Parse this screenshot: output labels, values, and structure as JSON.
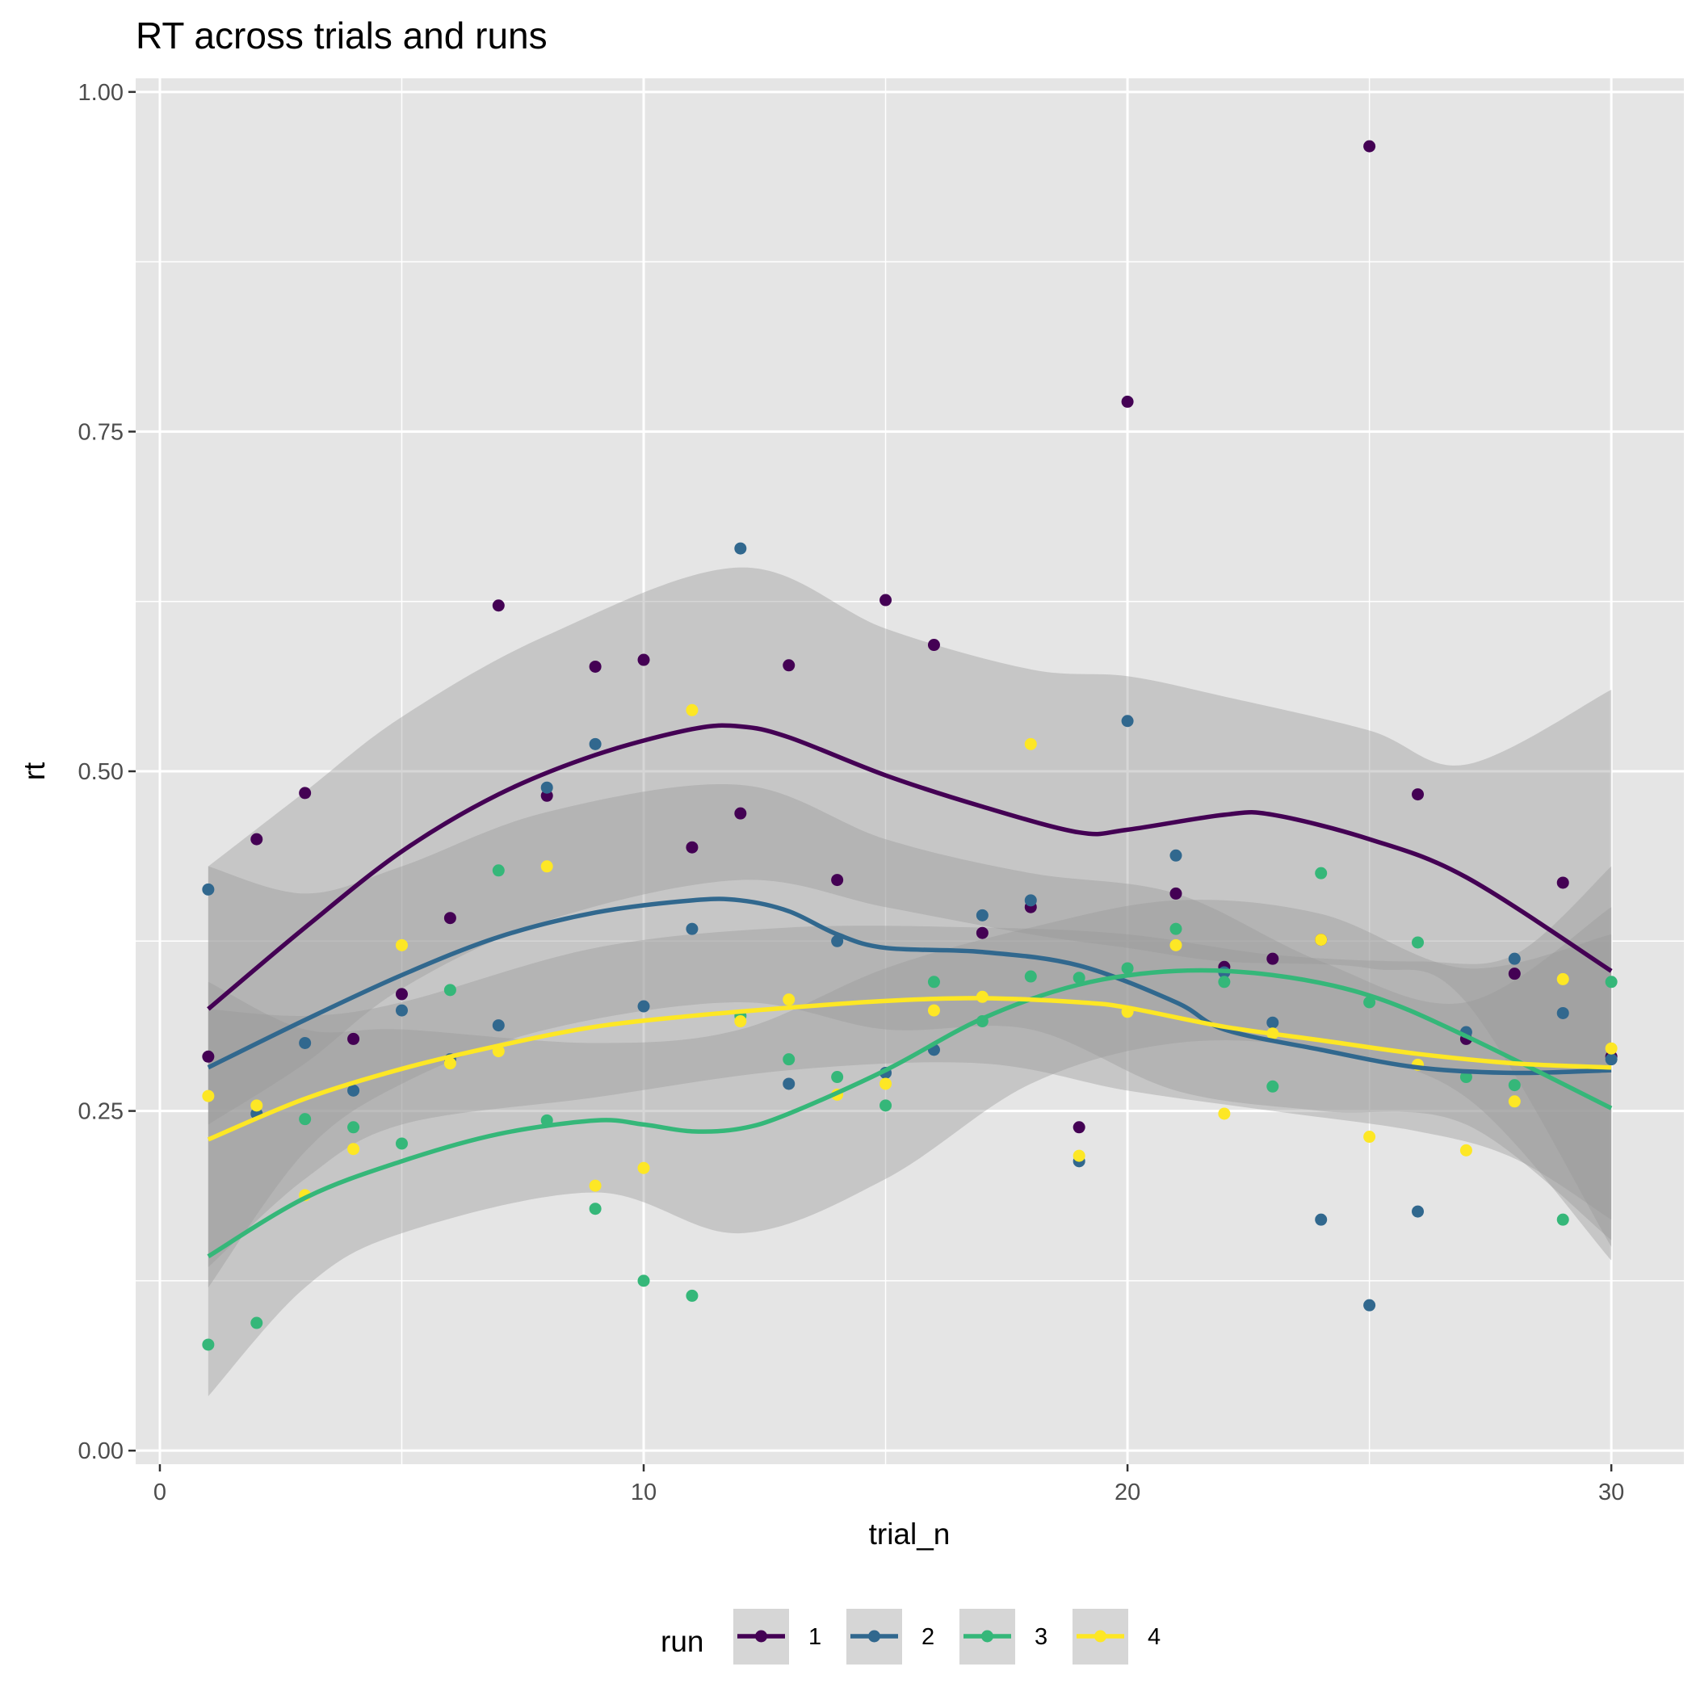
{
  "chart_data": {
    "type": "scatter",
    "title": "RT across trials and runs",
    "xlabel": "trial_n",
    "ylabel": "rt",
    "xlim": [
      -0.5,
      31.5
    ],
    "ylim": [
      -0.01,
      1.01
    ],
    "x_ticks": [
      0,
      10,
      20,
      30
    ],
    "x_tick_labels": [
      "0",
      "10",
      "20",
      "30"
    ],
    "y_ticks": [
      0.0,
      0.25,
      0.5,
      0.75,
      1.0
    ],
    "y_tick_labels": [
      "0.00",
      "0.25",
      "0.50",
      "0.75",
      "1.00"
    ],
    "grid": true,
    "legend": {
      "title": "run",
      "placement": "bottom"
    },
    "series": [
      {
        "name": "1",
        "color": "#440154",
        "points": [
          [
            1,
            0.29
          ],
          [
            2,
            0.45
          ],
          [
            3,
            0.484
          ],
          [
            4,
            0.303
          ],
          [
            5,
            0.336
          ],
          [
            6,
            0.392
          ],
          [
            7,
            0.622
          ],
          [
            8,
            0.482
          ],
          [
            9,
            0.577
          ],
          [
            10,
            0.582
          ],
          [
            11,
            0.444
          ],
          [
            12,
            0.469
          ],
          [
            13,
            0.578
          ],
          [
            14,
            0.42
          ],
          [
            15,
            0.626
          ],
          [
            16,
            0.593
          ],
          [
            17,
            0.381
          ],
          [
            18,
            0.4
          ],
          [
            19,
            0.238
          ],
          [
            20,
            0.772
          ],
          [
            21,
            0.41
          ],
          [
            22,
            0.356
          ],
          [
            23,
            0.362
          ],
          [
            24,
            0.376
          ],
          [
            25,
            0.96
          ],
          [
            26,
            0.483
          ],
          [
            27,
            0.303
          ],
          [
            28,
            0.351
          ],
          [
            29,
            0.418
          ],
          [
            30,
            0.29
          ]
        ],
        "smooth": [
          [
            1,
            0.325
          ],
          [
            3,
            0.385
          ],
          [
            5,
            0.441
          ],
          [
            7,
            0.483
          ],
          [
            9,
            0.512
          ],
          [
            11,
            0.531
          ],
          [
            12,
            0.533
          ],
          [
            13,
            0.525
          ],
          [
            15,
            0.497
          ],
          [
            17,
            0.474
          ],
          [
            19,
            0.455
          ],
          [
            20,
            0.457
          ],
          [
            22,
            0.468
          ],
          [
            23,
            0.468
          ],
          [
            25,
            0.45
          ],
          [
            27,
            0.422
          ],
          [
            30,
            0.353
          ]
        ],
        "ribbon": [
          [
            1,
            0.24,
            0.43
          ],
          [
            3,
            0.285,
            0.485
          ],
          [
            5,
            0.34,
            0.54
          ],
          [
            8,
            0.39,
            0.6
          ],
          [
            12,
            0.42,
            0.65
          ],
          [
            15,
            0.4,
            0.605
          ],
          [
            18,
            0.38,
            0.575
          ],
          [
            20,
            0.37,
            0.57
          ],
          [
            22,
            0.36,
            0.555
          ],
          [
            25,
            0.355,
            0.53
          ],
          [
            27,
            0.33,
            0.505
          ],
          [
            30,
            0.15,
            0.56
          ]
        ]
      },
      {
        "name": "2",
        "color": "#31688e",
        "points": [
          [
            1,
            0.413
          ],
          [
            2,
            0.248
          ],
          [
            3,
            0.3
          ],
          [
            4,
            0.265
          ],
          [
            5,
            0.324
          ],
          [
            6,
            0.288
          ],
          [
            7,
            0.313
          ],
          [
            8,
            0.488
          ],
          [
            9,
            0.52
          ],
          [
            10,
            0.327
          ],
          [
            11,
            0.384
          ],
          [
            12,
            0.664
          ],
          [
            13,
            0.27
          ],
          [
            14,
            0.375
          ],
          [
            15,
            0.278
          ],
          [
            16,
            0.295
          ],
          [
            17,
            0.394
          ],
          [
            18,
            0.405
          ],
          [
            19,
            0.213
          ],
          [
            20,
            0.537
          ],
          [
            21,
            0.438
          ],
          [
            22,
            0.352
          ],
          [
            23,
            0.315
          ],
          [
            24,
            0.17
          ],
          [
            25,
            0.107
          ],
          [
            26,
            0.176
          ],
          [
            27,
            0.308
          ],
          [
            28,
            0.362
          ],
          [
            29,
            0.322
          ],
          [
            30,
            0.288
          ]
        ],
        "smooth": [
          [
            1,
            0.282
          ],
          [
            3,
            0.317
          ],
          [
            5,
            0.35
          ],
          [
            7,
            0.378
          ],
          [
            9,
            0.396
          ],
          [
            11,
            0.405
          ],
          [
            12,
            0.405
          ],
          [
            13,
            0.397
          ],
          [
            14,
            0.38
          ],
          [
            15,
            0.37
          ],
          [
            17,
            0.367
          ],
          [
            19,
            0.357
          ],
          [
            21,
            0.33
          ],
          [
            22,
            0.31
          ],
          [
            24,
            0.295
          ],
          [
            26,
            0.282
          ],
          [
            28,
            0.278
          ],
          [
            30,
            0.28
          ]
        ],
        "ribbon": [
          [
            1,
            0.12,
            0.43
          ],
          [
            3,
            0.22,
            0.41
          ],
          [
            5,
            0.27,
            0.43
          ],
          [
            8,
            0.31,
            0.47
          ],
          [
            12,
            0.33,
            0.49
          ],
          [
            15,
            0.31,
            0.45
          ],
          [
            18,
            0.31,
            0.425
          ],
          [
            21,
            0.265,
            0.41
          ],
          [
            24,
            0.25,
            0.36
          ],
          [
            27,
            0.24,
            0.33
          ],
          [
            30,
            0.155,
            0.4
          ]
        ]
      },
      {
        "name": "3",
        "color": "#35b779",
        "points": [
          [
            1,
            0.078
          ],
          [
            2,
            0.094
          ],
          [
            3,
            0.244
          ],
          [
            4,
            0.238
          ],
          [
            5,
            0.226
          ],
          [
            6,
            0.339
          ],
          [
            7,
            0.427
          ],
          [
            8,
            0.243
          ],
          [
            9,
            0.178
          ],
          [
            10,
            0.125
          ],
          [
            11,
            0.114
          ],
          [
            12,
            0.32
          ],
          [
            13,
            0.288
          ],
          [
            14,
            0.275
          ],
          [
            15,
            0.254
          ],
          [
            16,
            0.345
          ],
          [
            17,
            0.316
          ],
          [
            18,
            0.349
          ],
          [
            19,
            0.348
          ],
          [
            20,
            0.355
          ],
          [
            21,
            0.384
          ],
          [
            22,
            0.345
          ],
          [
            23,
            0.268
          ],
          [
            24,
            0.425
          ],
          [
            25,
            0.33
          ],
          [
            26,
            0.374
          ],
          [
            27,
            0.275
          ],
          [
            28,
            0.269
          ],
          [
            29,
            0.17
          ],
          [
            30,
            0.345
          ]
        ],
        "smooth": [
          [
            1,
            0.143
          ],
          [
            3,
            0.186
          ],
          [
            5,
            0.213
          ],
          [
            7,
            0.233
          ],
          [
            9,
            0.243
          ],
          [
            10,
            0.24
          ],
          [
            11,
            0.235
          ],
          [
            12,
            0.237
          ],
          [
            13,
            0.248
          ],
          [
            15,
            0.28
          ],
          [
            17,
            0.318
          ],
          [
            19,
            0.343
          ],
          [
            21,
            0.353
          ],
          [
            23,
            0.35
          ],
          [
            25,
            0.335
          ],
          [
            27,
            0.305
          ],
          [
            30,
            0.252
          ]
        ],
        "ribbon": [
          [
            1,
            0.04,
            0.345
          ],
          [
            3,
            0.12,
            0.31
          ],
          [
            5,
            0.16,
            0.31
          ],
          [
            9,
            0.19,
            0.3
          ],
          [
            12,
            0.16,
            0.31
          ],
          [
            15,
            0.2,
            0.355
          ],
          [
            18,
            0.27,
            0.385
          ],
          [
            21,
            0.3,
            0.405
          ],
          [
            24,
            0.295,
            0.395
          ],
          [
            27,
            0.26,
            0.355
          ],
          [
            30,
            0.14,
            0.38
          ]
        ]
      },
      {
        "name": "4",
        "color": "#fde725",
        "points": [
          [
            1,
            0.261
          ],
          [
            2,
            0.254
          ],
          [
            3,
            0.188
          ],
          [
            4,
            0.222
          ],
          [
            5,
            0.372
          ],
          [
            6,
            0.285
          ],
          [
            7,
            0.294
          ],
          [
            8,
            0.43
          ],
          [
            9,
            0.195
          ],
          [
            10,
            0.208
          ],
          [
            11,
            0.545
          ],
          [
            12,
            0.316
          ],
          [
            13,
            0.332
          ],
          [
            14,
            0.262
          ],
          [
            15,
            0.27
          ],
          [
            16,
            0.324
          ],
          [
            17,
            0.334
          ],
          [
            18,
            0.52
          ],
          [
            19,
            0.217
          ],
          [
            20,
            0.323
          ],
          [
            21,
            0.372
          ],
          [
            22,
            0.248
          ],
          [
            23,
            0.307
          ],
          [
            24,
            0.376
          ],
          [
            25,
            0.231
          ],
          [
            26,
            0.284
          ],
          [
            27,
            0.221
          ],
          [
            28,
            0.257
          ],
          [
            29,
            0.347
          ],
          [
            30,
            0.296
          ]
        ],
        "smooth": [
          [
            1,
            0.229
          ],
          [
            3,
            0.259
          ],
          [
            5,
            0.281
          ],
          [
            7,
            0.298
          ],
          [
            9,
            0.312
          ],
          [
            11,
            0.32
          ],
          [
            13,
            0.326
          ],
          [
            15,
            0.331
          ],
          [
            17,
            0.333
          ],
          [
            19,
            0.33
          ],
          [
            20,
            0.326
          ],
          [
            22,
            0.312
          ],
          [
            24,
            0.302
          ],
          [
            26,
            0.292
          ],
          [
            28,
            0.285
          ],
          [
            30,
            0.282
          ]
        ],
        "ribbon": [
          [
            1,
            0.135,
            0.325
          ],
          [
            3,
            0.2,
            0.32
          ],
          [
            5,
            0.24,
            0.33
          ],
          [
            9,
            0.26,
            0.37
          ],
          [
            13,
            0.28,
            0.385
          ],
          [
            17,
            0.285,
            0.385
          ],
          [
            20,
            0.265,
            0.38
          ],
          [
            23,
            0.25,
            0.365
          ],
          [
            26,
            0.235,
            0.36
          ],
          [
            28,
            0.215,
            0.365
          ],
          [
            30,
            0.17,
            0.43
          ]
        ]
      }
    ]
  }
}
